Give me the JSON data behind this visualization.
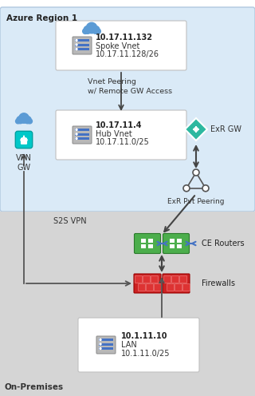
{
  "bg_azure_color": "#daeaf7",
  "bg_onprem_color": "#d5d5d5",
  "title_azure": "Azure Region 1",
  "title_onprem": "On-Premises",
  "spoke_ip": "10.17.11.132",
  "spoke_label": "Spoke Vnet",
  "spoke_subnet": "10.17.11.128/26",
  "hub_ip": "10.17.11.4",
  "hub_label": "Hub Vnet",
  "hub_subnet": "10.17.11.0/25",
  "peering_label": "Vnet Peering\nw/ Remote GW Access",
  "exr_gw_label": "ExR GW",
  "vpn_gw_label": "VPN\nGW",
  "s2s_vpn_label": "S2S VPN",
  "exr_pvt_label": "ExR Pvt Peering",
  "ce_routers_label": "CE Routers",
  "firewalls_label": "Firewalls",
  "lan_ip": "10.1.11.10",
  "lan_label": "LAN",
  "lan_subnet": "10.1.11.0/25"
}
